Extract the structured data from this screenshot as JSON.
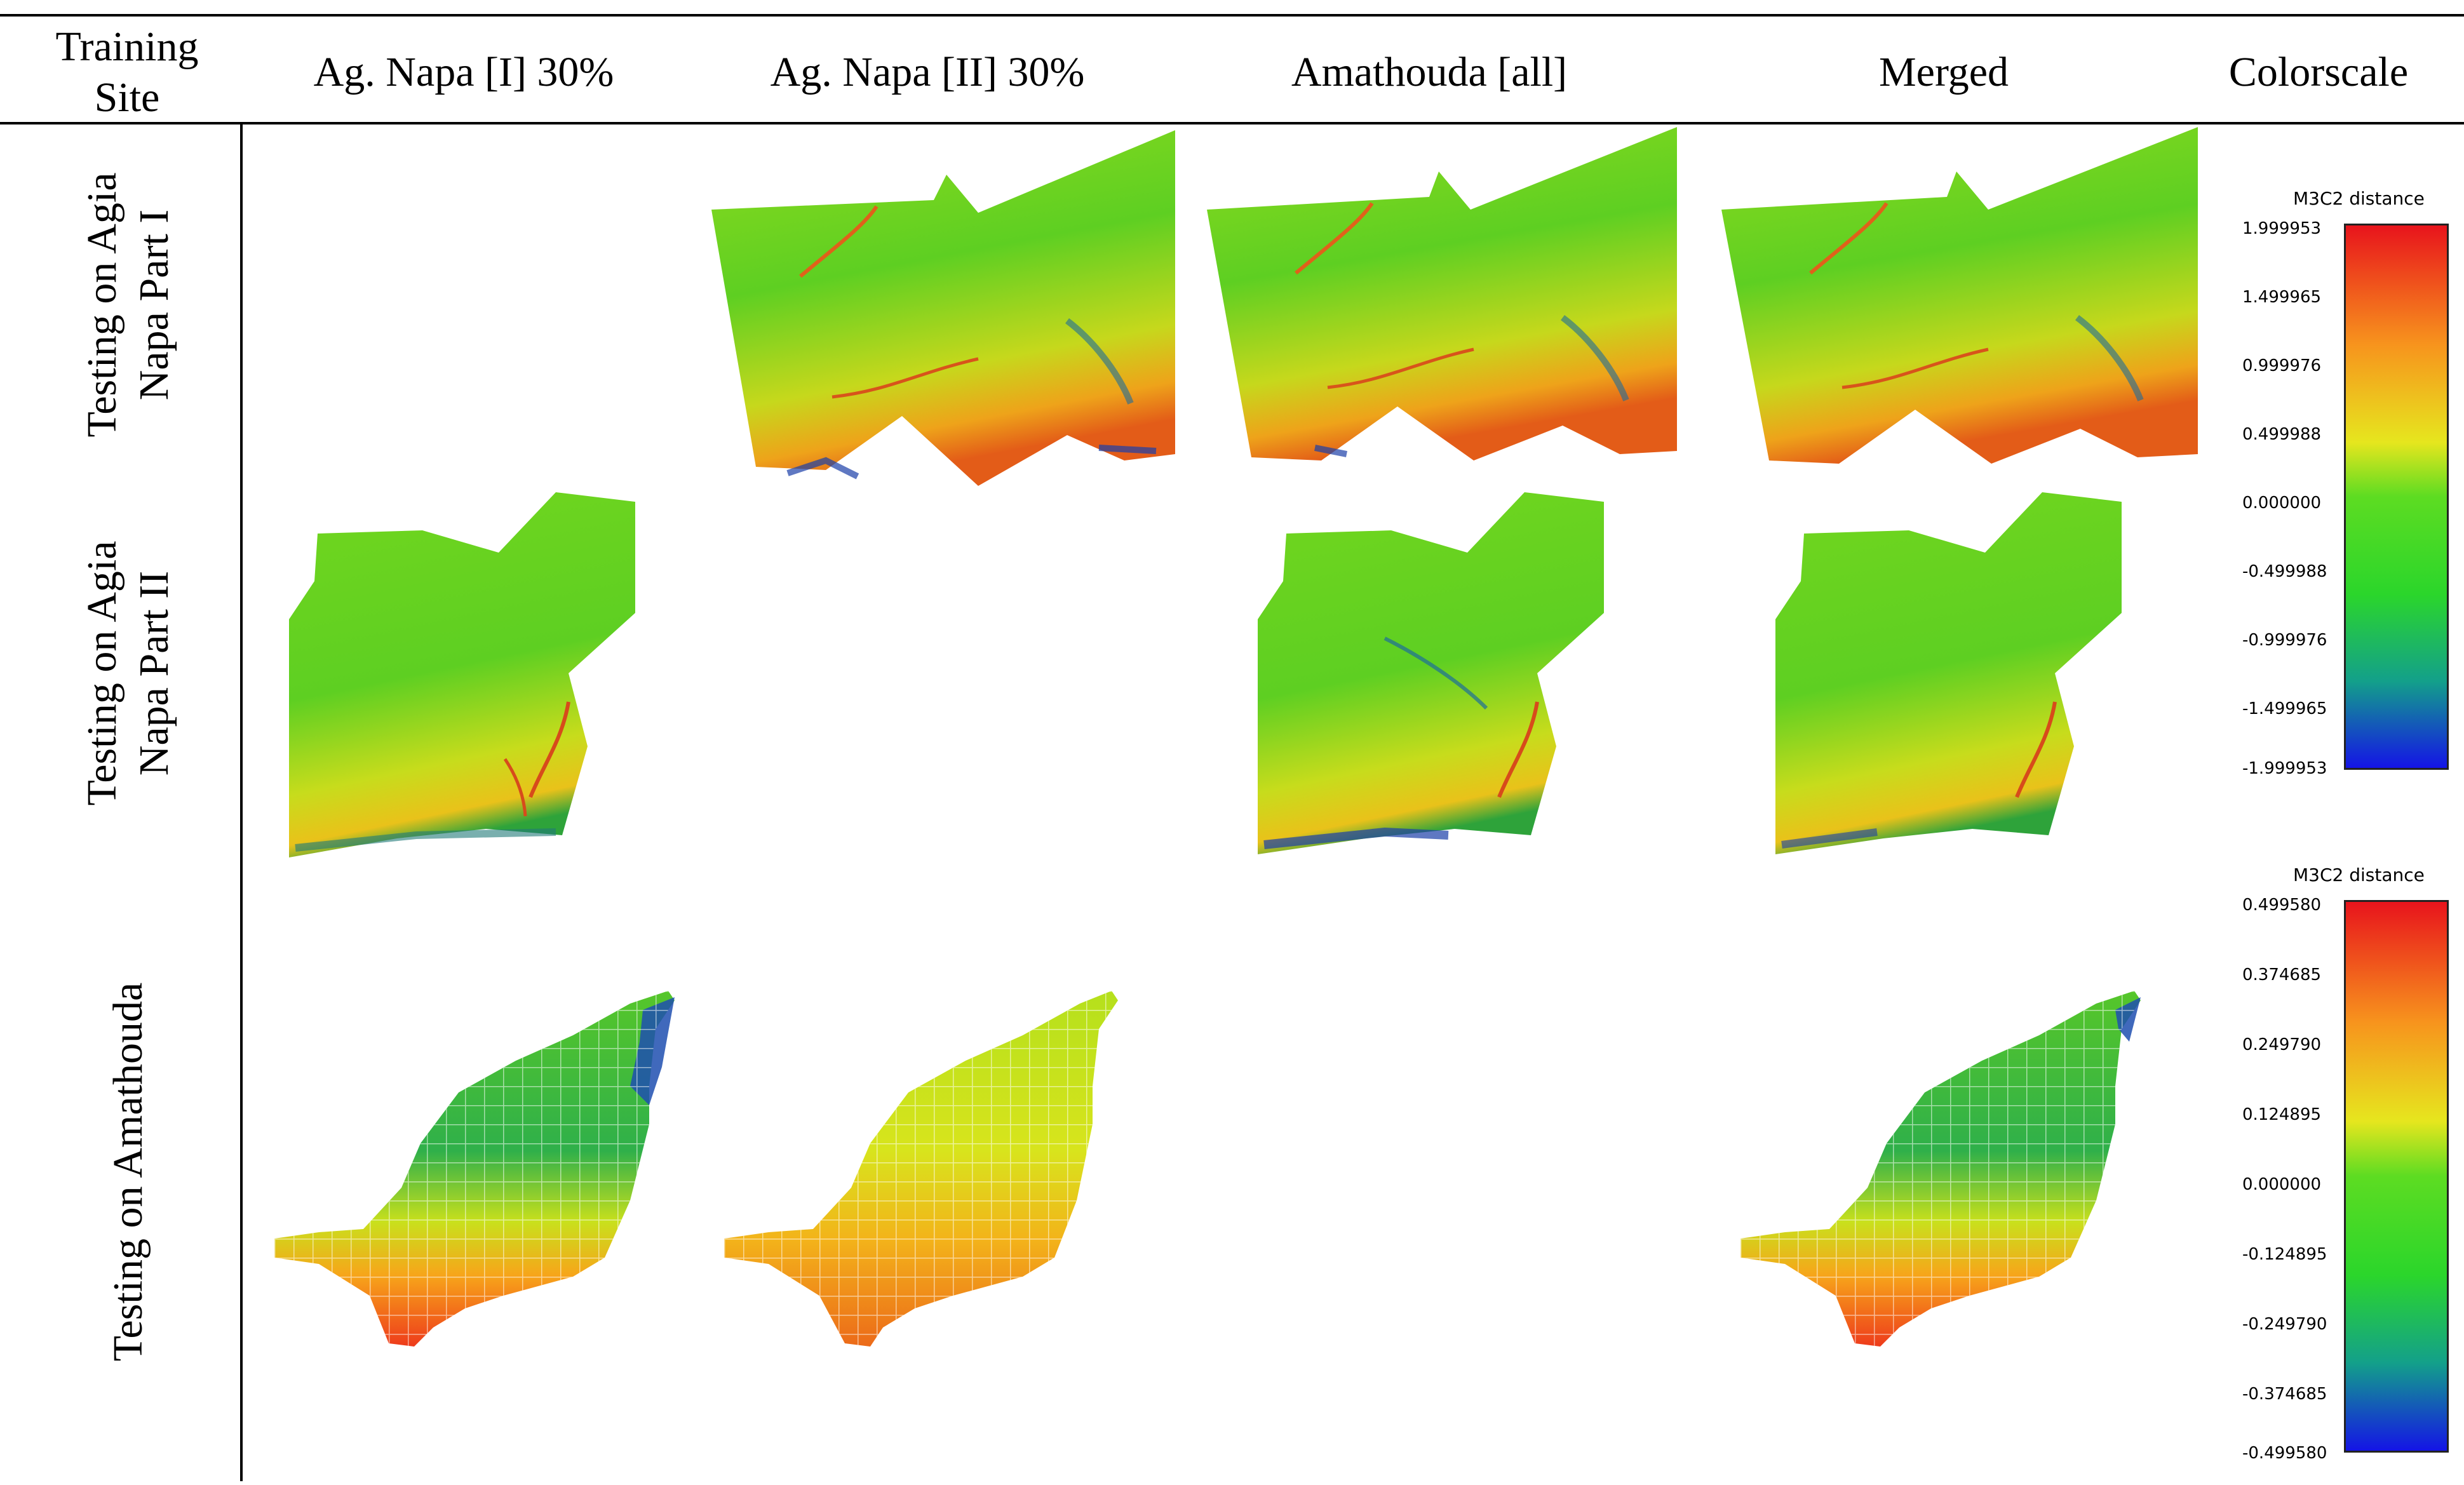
{
  "table": {
    "headers": [
      {
        "id": "training-site",
        "label": "Training Site"
      },
      {
        "id": "agnapa-1",
        "label": "Ag. Napa [I] 30%"
      },
      {
        "id": "agnapa-2",
        "label": "Ag. Napa [II] 30%"
      },
      {
        "id": "amathouda",
        "label": "Amathouda [all]"
      },
      {
        "id": "merged",
        "label": "Merged"
      },
      {
        "id": "colorscale",
        "label": "Colorscale"
      }
    ],
    "header_training_line1": "Training",
    "header_training_line2": "Site",
    "rows": [
      {
        "label_line1": "Testing on Agia",
        "label_line2": "Napa Part I"
      },
      {
        "label_line1": "Testing on Agia",
        "label_line2": "Napa Part II"
      },
      {
        "label_line1": "Testing on Amathouda",
        "label_line2": ""
      }
    ]
  },
  "colorscales": [
    {
      "title": "M3C2 distance",
      "ticks": [
        "1.999953",
        "1.499965",
        "0.999976",
        "0.499988",
        "0.000000",
        "-0.499988",
        "-0.999976",
        "-1.499965",
        "-1.999953"
      ]
    },
    {
      "title": "M3C2 distance",
      "ticks": [
        "0.499580",
        "0.374685",
        "0.249790",
        "0.124895",
        "0.000000",
        "-0.124895",
        "-0.249790",
        "-0.374685",
        "-0.499580"
      ]
    }
  ],
  "colors": {
    "scale_top": "#e8141c",
    "scale_orange": "#f7941d",
    "scale_yellow": "#e6e61e",
    "scale_green": "#2bd62b",
    "scale_teal": "#13a08a",
    "scale_bottom": "#1414e6"
  }
}
